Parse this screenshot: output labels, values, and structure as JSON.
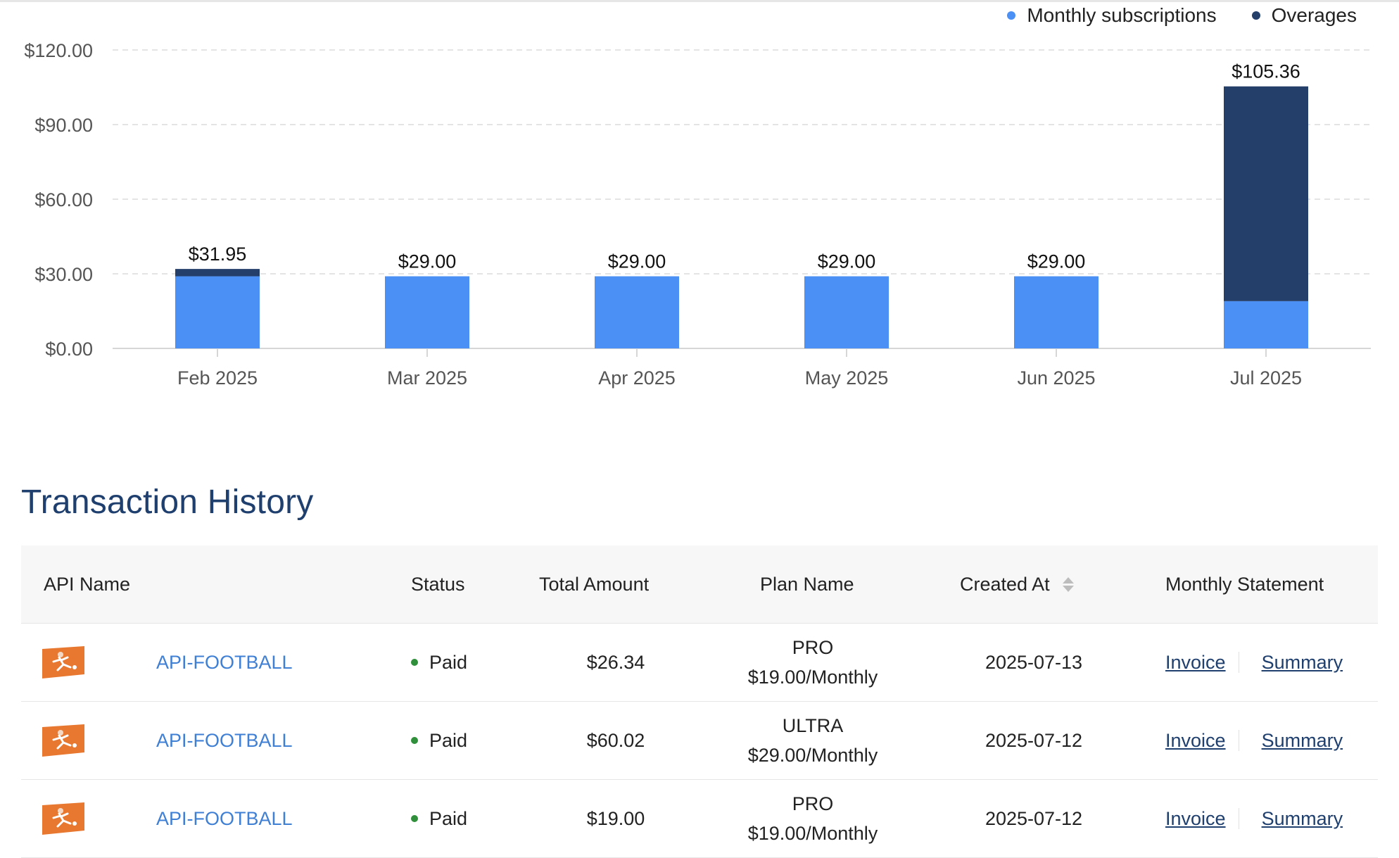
{
  "chart_data": {
    "type": "bar",
    "stacked": true,
    "categories": [
      "Feb 2025",
      "Mar 2025",
      "Apr 2025",
      "May 2025",
      "Jun 2025",
      "Jul 2025"
    ],
    "series": [
      {
        "name": "Monthly subscriptions",
        "color": "#4a90f5",
        "values": [
          29.0,
          29.0,
          29.0,
          29.0,
          29.0,
          19.0
        ]
      },
      {
        "name": "Overages",
        "color": "#253f6b",
        "values": [
          2.95,
          0,
          0,
          0,
          0,
          86.36
        ]
      }
    ],
    "total_labels": [
      "$31.95",
      "$29.00",
      "$29.00",
      "$29.00",
      "$29.00",
      "$105.36"
    ],
    "y_ticks": [
      "$0.00",
      "$30.00",
      "$60.00",
      "$90.00",
      "$120.00"
    ],
    "y_tick_values": [
      0,
      30,
      60,
      90,
      120
    ],
    "ylim": [
      0,
      120
    ],
    "grid": true,
    "legend_position": "top-right"
  },
  "transactions": {
    "title": "Transaction History",
    "columns": {
      "api_name": "API Name",
      "status": "Status",
      "total_amount": "Total Amount",
      "plan_name": "Plan Name",
      "created_at": "Created At",
      "monthly_statement": "Monthly Statement"
    },
    "rows": [
      {
        "api": "API-FOOTBALL",
        "status": "Paid",
        "amount": "$26.34",
        "plan": "PRO",
        "price": "$19.00/Monthly",
        "date": "2025-07-13",
        "invoice": "Invoice",
        "summary": "Summary"
      },
      {
        "api": "API-FOOTBALL",
        "status": "Paid",
        "amount": "$60.02",
        "plan": "ULTRA",
        "price": "$29.00/Monthly",
        "date": "2025-07-12",
        "invoice": "Invoice",
        "summary": "Summary"
      },
      {
        "api": "API-FOOTBALL",
        "status": "Paid",
        "amount": "$19.00",
        "plan": "PRO",
        "price": "$19.00/Monthly",
        "date": "2025-07-12",
        "invoice": "Invoice",
        "summary": "Summary"
      }
    ]
  },
  "colors": {
    "status_paid": "#2f8f3a",
    "link": "#3f7fd4",
    "title": "#1f3f6e"
  },
  "icons": {
    "api_thumb": "football-player-thumbnail-icon",
    "sort": "sort-arrows-icon"
  }
}
